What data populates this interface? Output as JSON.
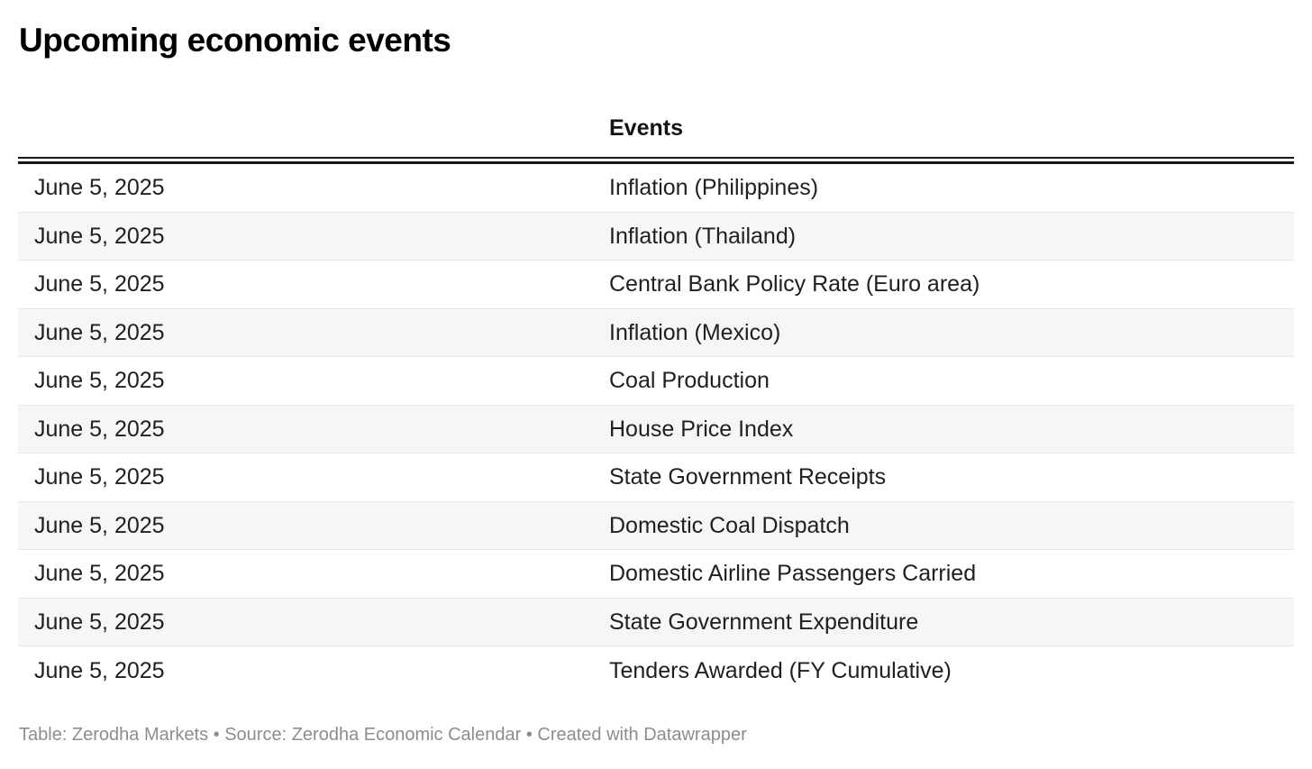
{
  "chart_data": {
    "type": "table",
    "title": "Upcoming economic events",
    "columns": [
      "",
      "Events"
    ],
    "rows": [
      [
        "June 5, 2025",
        "Inflation (Philippines)"
      ],
      [
        "June 5, 2025",
        "Inflation (Thailand)"
      ],
      [
        "June 5, 2025",
        "Central Bank Policy Rate (Euro area)"
      ],
      [
        "June 5, 2025",
        "Inflation (Mexico)"
      ],
      [
        "June 5, 2025",
        "Coal Production"
      ],
      [
        "June 5, 2025",
        "House Price Index"
      ],
      [
        "June 5, 2025",
        "State Government Receipts"
      ],
      [
        "June 5, 2025",
        "Domestic Coal Dispatch"
      ],
      [
        "June 5, 2025",
        "Domestic Airline Passengers Carried"
      ],
      [
        "June 5, 2025",
        "State Government Expenditure"
      ],
      [
        "June 5, 2025",
        "Tenders Awarded (FY Cumulative)"
      ]
    ],
    "footer": "Table: Zerodha Markets • Source: Zerodha Economic Calendar • Created with Datawrapper",
    "layout_hints": {
      "striped_rows": true,
      "header_rule": "double",
      "grid": "horizontal-only"
    }
  },
  "colors": {
    "title_text": "#000000",
    "header_text": "#131313",
    "body_text": "#202020",
    "alt_row_bg": "#f6f6f6",
    "row_divider": "#e6e6e6",
    "header_rule": "#161616",
    "footer_text": "#8d8d8d",
    "background": "#ffffff"
  }
}
